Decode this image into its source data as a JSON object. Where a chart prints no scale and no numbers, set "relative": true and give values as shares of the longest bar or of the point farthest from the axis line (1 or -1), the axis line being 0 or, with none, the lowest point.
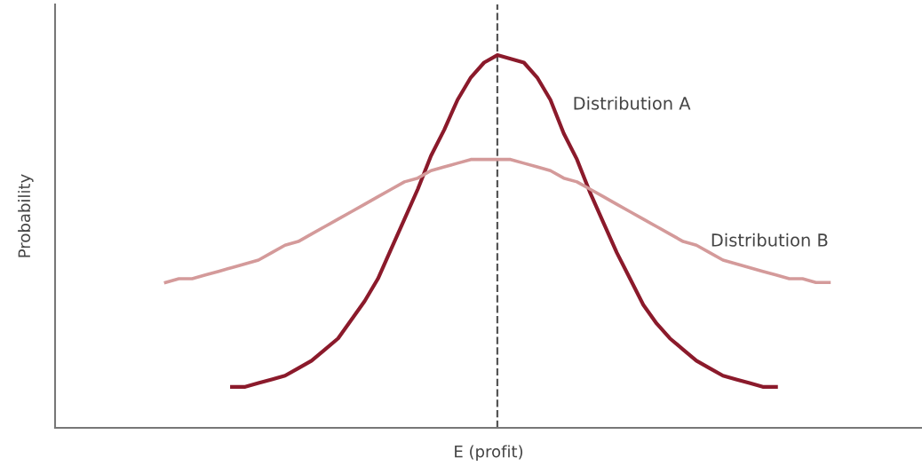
{
  "chart_data": {
    "type": "line",
    "relative": true,
    "xlabel": "E (profit)",
    "annotations": [
      "Probability"
    ],
    "categories": [
      null,
      null,
      null,
      null,
      null,
      null,
      null,
      null,
      null,
      null,
      null,
      null,
      null,
      null,
      null,
      null,
      null,
      null,
      null,
      null,
      null,
      null,
      null,
      null,
      null,
      null,
      null,
      null,
      null,
      null,
      null,
      null,
      null,
      null,
      null,
      null,
      null,
      null,
      null,
      null,
      null,
      null,
      null,
      null,
      null,
      null,
      null,
      null,
      null,
      null,
      null
    ],
    "series": [
      {
        "name": "Distribution A",
        "color": "#8b1a2b",
        "values": [
          null,
          null,
          null,
          null,
          null,
          0.11,
          0.11,
          0.12,
          0.13,
          0.14,
          0.16,
          0.18,
          0.21,
          0.24,
          0.29,
          0.34,
          0.4,
          0.48,
          0.56,
          0.64,
          0.73,
          0.8,
          0.88,
          0.94,
          0.98,
          1.0,
          0.99,
          0.98,
          0.94,
          0.88,
          0.79,
          0.72,
          0.63,
          0.55,
          0.47,
          0.4,
          0.33,
          0.28,
          0.24,
          0.21,
          0.18,
          0.16,
          0.14,
          0.13,
          0.12,
          0.11,
          0.11,
          null,
          null,
          null,
          null
        ]
      },
      {
        "name": "Distribution B",
        "color": "#d49a9a",
        "values": [
          0.39,
          0.4,
          0.4,
          0.41,
          0.42,
          0.43,
          0.44,
          0.45,
          0.47,
          0.49,
          0.5,
          0.52,
          0.54,
          0.56,
          0.58,
          0.6,
          0.62,
          0.64,
          0.66,
          0.67,
          0.69,
          0.7,
          0.71,
          0.72,
          0.72,
          0.72,
          0.72,
          0.71,
          0.7,
          0.69,
          0.67,
          0.66,
          0.64,
          0.62,
          0.6,
          0.58,
          0.56,
          0.54,
          0.52,
          0.5,
          0.49,
          0.47,
          0.45,
          0.44,
          0.43,
          0.42,
          0.41,
          0.4,
          0.4,
          0.39,
          0.39
        ]
      }
    ],
    "legend": false,
    "marker": "none",
    "line_style": "solid"
  }
}
